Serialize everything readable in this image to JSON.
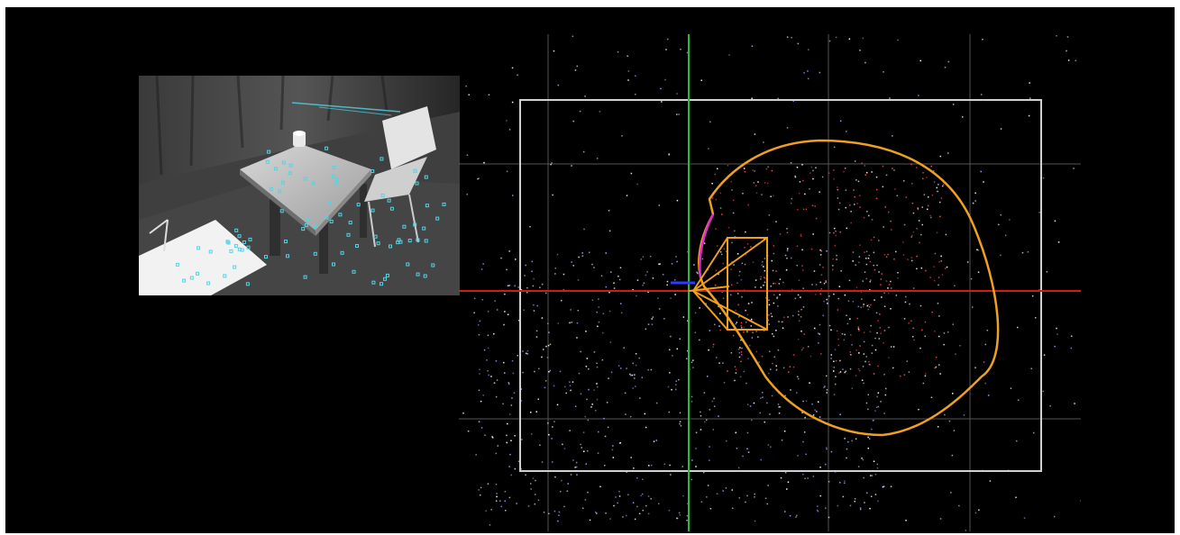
{
  "window": {
    "background_color": "#000000"
  },
  "camera_view": {
    "image_type": "grayscale-camera-frame",
    "feature_color": "#4fd6e8",
    "objects": [
      "table",
      "chair",
      "chair",
      "cup"
    ]
  },
  "map_view": {
    "grid_color": "#7a7a7a",
    "x_axis_color": "#d21a1a",
    "y_axis_color": "#1fbf3a",
    "z_axis_color": "#2a3cff",
    "trajectory_color": "#f0a020",
    "recent_path_color": "#e02ad8",
    "keyframe_color": "#f0a020",
    "point_colors": [
      "#ffffff",
      "#9aa6ff",
      "#ff4a4a"
    ]
  }
}
